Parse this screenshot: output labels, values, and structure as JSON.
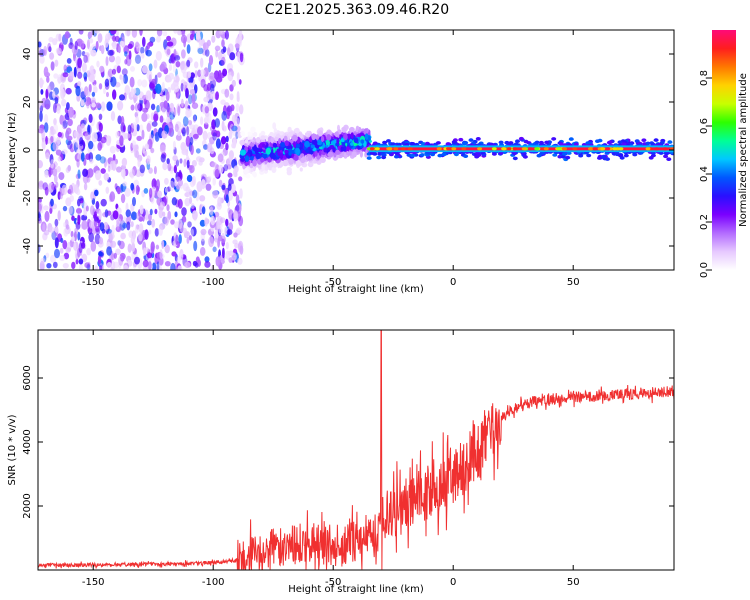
{
  "title": "C2E1.2025.363.09.46.R20",
  "chart_data": [
    {
      "type": "heatmap",
      "name": "spectrogram",
      "xlabel": "Height of straight line (km)",
      "ylabel": "Frequency (Hz)",
      "xlim": [
        -173,
        92
      ],
      "ylim": [
        -50,
        50
      ],
      "xticks": [
        -150,
        -100,
        -50,
        0,
        50
      ],
      "yticks": [
        -40,
        -20,
        0,
        20,
        40
      ],
      "colorbar": {
        "label": "Normalized spectral amplitude",
        "range": [
          0,
          1
        ],
        "ticks": [
          0.0,
          0.2,
          0.4,
          0.6,
          0.8
        ],
        "colors": [
          "#ffffff",
          "#e6c8ff",
          "#b36bff",
          "#7a00ff",
          "#2a10ff",
          "#0057ff",
          "#00c8ff",
          "#00ff96",
          "#2dff00",
          "#c8ff00",
          "#ffd200",
          "#ff7800",
          "#ff1e1e",
          "#ff0a78"
        ]
      },
      "features": [
        {
          "region": "noise",
          "x": [
            -173,
            -88
          ],
          "freq_spread_hz": 50,
          "amplitude": 0.15
        },
        {
          "region": "onset band",
          "x": [
            -88,
            -35
          ],
          "freq_center_start_hz": -2,
          "freq_center_end_hz": 4,
          "half_width_hz": 7,
          "amplitude": 0.35
        },
        {
          "region": "narrow line",
          "x": [
            -35,
            92
          ],
          "freq_center_hz": 0.5,
          "half_width_hz": 2,
          "amplitude": 0.95
        }
      ]
    },
    {
      "type": "line",
      "name": "snr",
      "xlabel": "Height of straight line (km)",
      "ylabel": "SNR (10 * v/v)",
      "xlim": [
        -173,
        92
      ],
      "ylim": [
        0,
        7500
      ],
      "xticks": [
        -150,
        -100,
        -50,
        0,
        50
      ],
      "yticks": [
        2000,
        4000,
        6000
      ],
      "color": "#f03030",
      "trend": {
        "x": [
          -173,
          -150,
          -120,
          -100,
          -90,
          -80,
          -70,
          -60,
          -50,
          -40,
          -33,
          -25,
          -15,
          -5,
          0,
          5,
          10,
          15,
          20,
          25,
          30,
          40,
          50,
          60,
          70,
          80,
          92
        ],
        "y": [
          150,
          160,
          190,
          230,
          300,
          500,
          800,
          850,
          750,
          900,
          1200,
          1800,
          2300,
          2700,
          3000,
          3300,
          3700,
          4200,
          4700,
          5000,
          5200,
          5350,
          5400,
          5450,
          5480,
          5520,
          5600
        ]
      },
      "spike": {
        "x": -30,
        "y": 7500
      }
    }
  ]
}
